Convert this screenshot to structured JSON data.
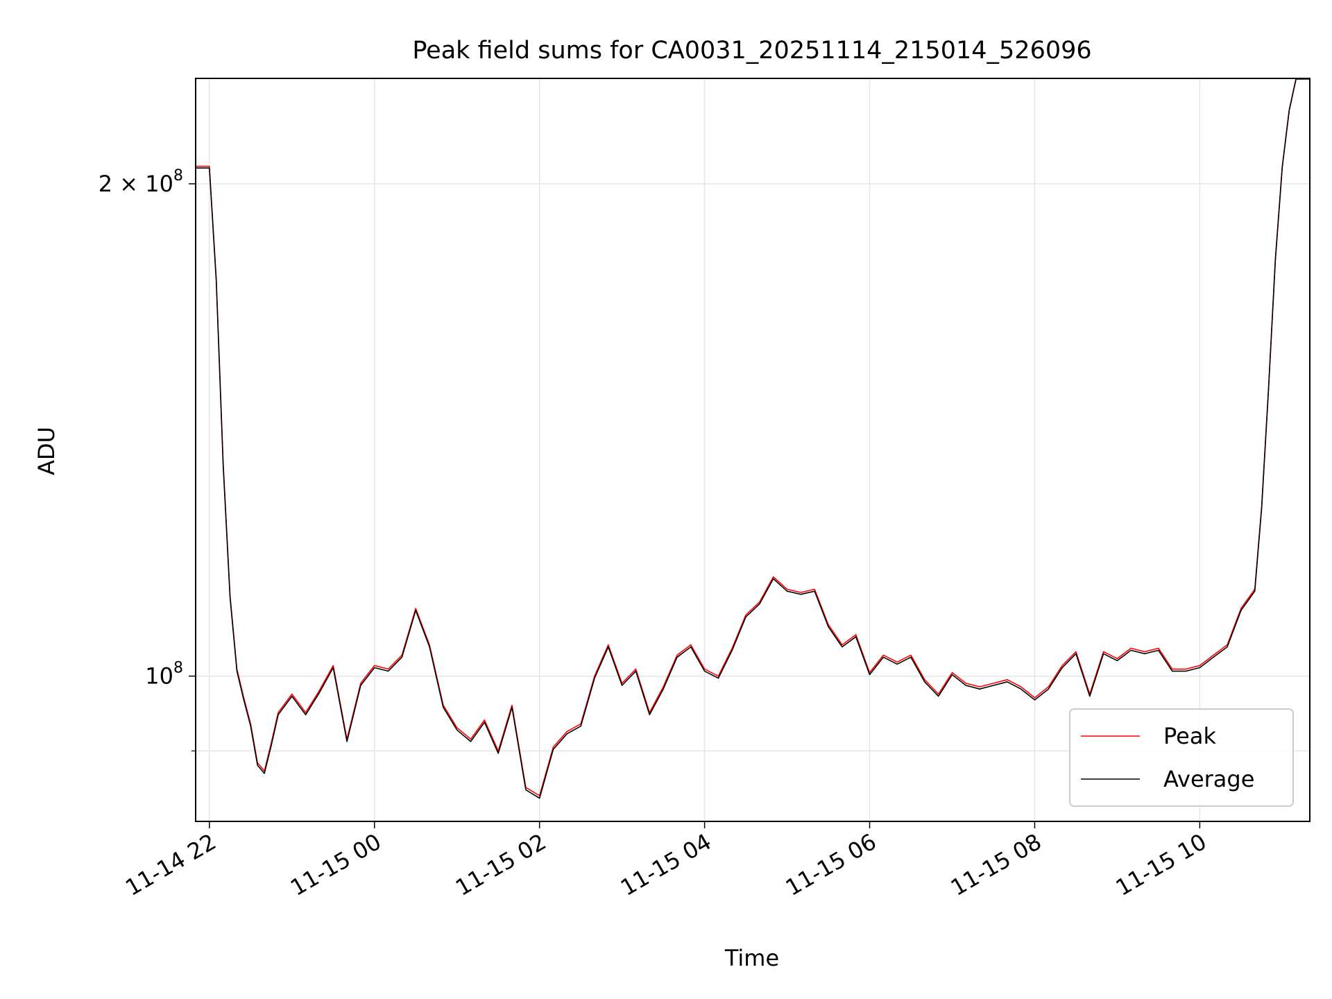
{
  "chart_data": {
    "type": "line",
    "title": "Peak field sums for CA0031_20251114_215014_526096",
    "xlabel": "Time",
    "ylabel": "ADU",
    "y_scale": "log",
    "grid": true,
    "legend_position": "lower-right",
    "xlim": [
      "2025-11-14 21:50",
      "2025-11-15 11:20"
    ],
    "ylim": [
      81500000,
      232000000
    ],
    "x_ticks": [
      {
        "value": "2025-11-14 22:00",
        "label": "11-14 22"
      },
      {
        "value": "2025-11-15 00:00",
        "label": "11-15 00"
      },
      {
        "value": "2025-11-15 02:00",
        "label": "11-15 02"
      },
      {
        "value": "2025-11-15 04:00",
        "label": "11-15 04"
      },
      {
        "value": "2025-11-15 06:00",
        "label": "11-15 06"
      },
      {
        "value": "2025-11-15 08:00",
        "label": "11-15 08"
      },
      {
        "value": "2025-11-15 10:00",
        "label": "11-15 10"
      }
    ],
    "y_ticks": [
      {
        "value": 200000000,
        "base": "2 × 10",
        "exp": "8"
      },
      {
        "value": 100000000,
        "base": "10",
        "exp": "8"
      }
    ],
    "y_minor_ticks": [
      90000000
    ],
    "x": [
      "2025-11-14 21:50",
      "2025-11-14 22:00",
      "2025-11-14 22:05",
      "2025-11-14 22:10",
      "2025-11-14 22:15",
      "2025-11-14 22:20",
      "2025-11-14 22:25",
      "2025-11-14 22:30",
      "2025-11-14 22:35",
      "2025-11-14 22:40",
      "2025-11-14 22:45",
      "2025-11-14 22:50",
      "2025-11-14 23:00",
      "2025-11-14 23:10",
      "2025-11-14 23:20",
      "2025-11-14 23:30",
      "2025-11-14 23:40",
      "2025-11-14 23:50",
      "2025-11-15 00:00",
      "2025-11-15 00:10",
      "2025-11-15 00:20",
      "2025-11-15 00:30",
      "2025-11-15 00:40",
      "2025-11-15 00:50",
      "2025-11-15 01:00",
      "2025-11-15 01:10",
      "2025-11-15 01:20",
      "2025-11-15 01:30",
      "2025-11-15 01:40",
      "2025-11-15 01:50",
      "2025-11-15 02:00",
      "2025-11-15 02:10",
      "2025-11-15 02:20",
      "2025-11-15 02:30",
      "2025-11-15 02:40",
      "2025-11-15 02:50",
      "2025-11-15 03:00",
      "2025-11-15 03:10",
      "2025-11-15 03:20",
      "2025-11-15 03:30",
      "2025-11-15 03:40",
      "2025-11-15 03:50",
      "2025-11-15 04:00",
      "2025-11-15 04:10",
      "2025-11-15 04:20",
      "2025-11-15 04:30",
      "2025-11-15 04:40",
      "2025-11-15 04:50",
      "2025-11-15 05:00",
      "2025-11-15 05:10",
      "2025-11-15 05:20",
      "2025-11-15 05:30",
      "2025-11-15 05:40",
      "2025-11-15 05:50",
      "2025-11-15 06:00",
      "2025-11-15 06:10",
      "2025-11-15 06:20",
      "2025-11-15 06:30",
      "2025-11-15 06:40",
      "2025-11-15 06:50",
      "2025-11-15 07:00",
      "2025-11-15 07:10",
      "2025-11-15 07:20",
      "2025-11-15 07:30",
      "2025-11-15 07:40",
      "2025-11-15 07:50",
      "2025-11-15 08:00",
      "2025-11-15 08:10",
      "2025-11-15 08:20",
      "2025-11-15 08:30",
      "2025-11-15 08:40",
      "2025-11-15 08:50",
      "2025-11-15 09:00",
      "2025-11-15 09:10",
      "2025-11-15 09:20",
      "2025-11-15 09:30",
      "2025-11-15 09:40",
      "2025-11-15 09:50",
      "2025-11-15 10:00",
      "2025-11-15 10:10",
      "2025-11-15 10:20",
      "2025-11-15 10:30",
      "2025-11-15 10:40",
      "2025-11-15 10:45",
      "2025-11-15 10:50",
      "2025-11-15 10:55",
      "2025-11-15 11:00",
      "2025-11-15 11:05",
      "2025-11-15 11:10",
      "2025-11-15 11:15",
      "2025-11-15 11:20"
    ],
    "series": [
      {
        "name": "Peak",
        "color": "#ff0000",
        "values": [
          205000000,
          205000000,
          175000000,
          135000000,
          112000000,
          101000000,
          97000000,
          93500000,
          88500000,
          87500000,
          91000000,
          95000000,
          97500000,
          95000000,
          98000000,
          101500000,
          91500000,
          99000000,
          101500000,
          101000000,
          103000000,
          110000000,
          104500000,
          96000000,
          93000000,
          91500000,
          94000000,
          90000000,
          96000000,
          85500000,
          84500000,
          90500000,
          92500000,
          93500000,
          100000000,
          104500000,
          99000000,
          101000000,
          95000000,
          98500000,
          103000000,
          104500000,
          101000000,
          100000000,
          104000000,
          109000000,
          111000000,
          115000000,
          113000000,
          112500000,
          113000000,
          107500000,
          104500000,
          106000000,
          100500000,
          103000000,
          102000000,
          103000000,
          99500000,
          97500000,
          100500000,
          99000000,
          98500000,
          99000000,
          99500000,
          98500000,
          97000000,
          98500000,
          101500000,
          103500000,
          97500000,
          103500000,
          102500000,
          104000000,
          103500000,
          104000000,
          101000000,
          101000000,
          101500000,
          103000000,
          104500000,
          110000000,
          113000000,
          127000000,
          150000000,
          180000000,
          205000000,
          222000000,
          232000000,
          232000000,
          232000000
        ]
      },
      {
        "name": "Average",
        "color": "#000000",
        "values": [
          204500000,
          204500000,
          174500000,
          134500000,
          111700000,
          100700000,
          96700000,
          93200000,
          88200000,
          87200000,
          90700000,
          94700000,
          97200000,
          94700000,
          97700000,
          101200000,
          91200000,
          98700000,
          101200000,
          100700000,
          102700000,
          109700000,
          104200000,
          95700000,
          92700000,
          91200000,
          93700000,
          89700000,
          95700000,
          85200000,
          84200000,
          90200000,
          92200000,
          93200000,
          99700000,
          104200000,
          98700000,
          100700000,
          94700000,
          98200000,
          102700000,
          104200000,
          100700000,
          99700000,
          103700000,
          108700000,
          110700000,
          114700000,
          112700000,
          112200000,
          112700000,
          107200000,
          104200000,
          105700000,
          100200000,
          102700000,
          101700000,
          102700000,
          99200000,
          97200000,
          100200000,
          98700000,
          98200000,
          98700000,
          99200000,
          98200000,
          96700000,
          98200000,
          101200000,
          103200000,
          97200000,
          103200000,
          102200000,
          103700000,
          103200000,
          103700000,
          100700000,
          100700000,
          101200000,
          102700000,
          104200000,
          109700000,
          112700000,
          126700000,
          149700000,
          179700000,
          204700000,
          221700000,
          231800000,
          231800000,
          231800000
        ]
      }
    ]
  }
}
